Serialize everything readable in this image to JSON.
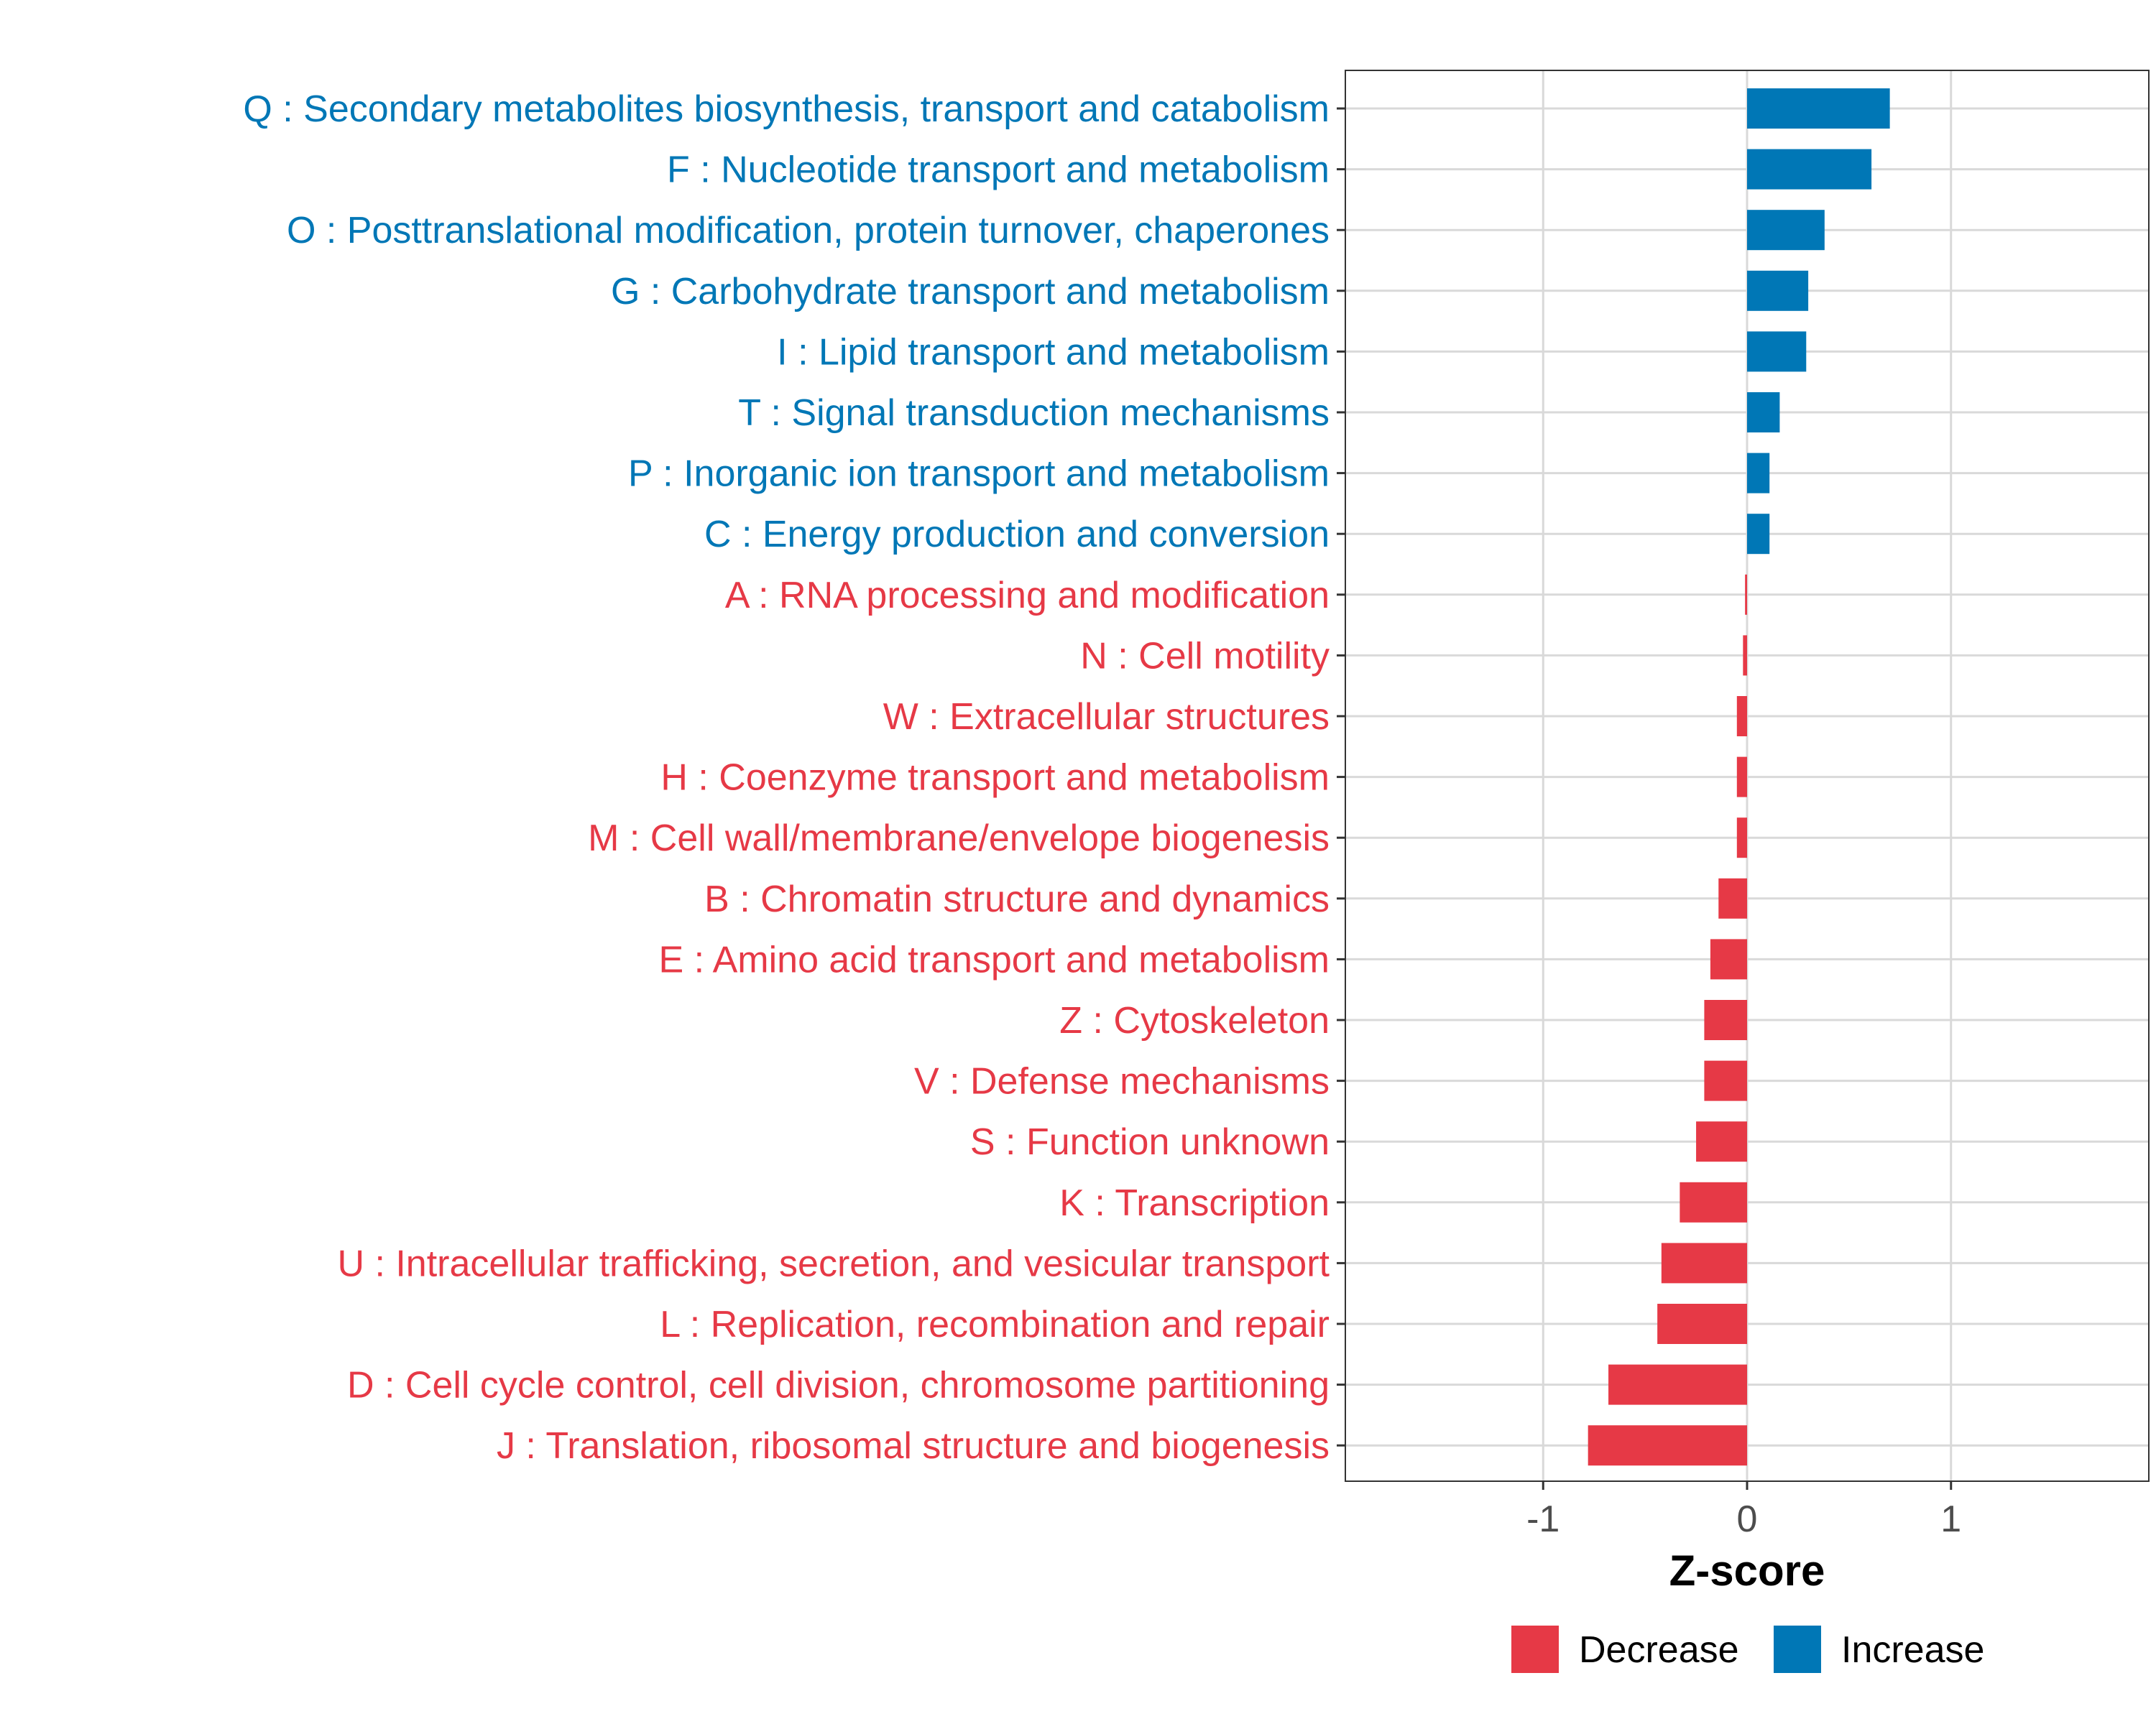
{
  "chart_data": {
    "type": "bar",
    "orientation": "horizontal",
    "categories": [
      "Q : Secondary metabolites biosynthesis, transport and catabolism",
      "F : Nucleotide transport and metabolism",
      "O : Posttranslational modification, protein turnover, chaperones",
      "G : Carbohydrate transport and metabolism",
      "I : Lipid transport and metabolism",
      "T : Signal transduction mechanisms",
      "P : Inorganic ion transport and metabolism",
      "C : Energy production and conversion",
      "A : RNA processing and modification",
      "N : Cell motility",
      "W : Extracellular structures",
      "H : Coenzyme transport and metabolism",
      "M : Cell wall/membrane/envelope biogenesis",
      "B : Chromatin structure and dynamics",
      "E : Amino acid transport and metabolism",
      "Z : Cytoskeleton",
      "V : Defense mechanisms",
      "S : Function unknown",
      "K : Transcription",
      "U : Intracellular trafficking, secretion, and vesicular transport",
      "L : Replication, recombination and repair",
      "D : Cell cycle control, cell division, chromosome partitioning",
      "J : Translation, ribosomal structure and biogenesis"
    ],
    "values": [
      0.7,
      0.61,
      0.38,
      0.3,
      0.29,
      0.16,
      0.11,
      0.11,
      -0.01,
      -0.02,
      -0.05,
      -0.05,
      -0.05,
      -0.14,
      -0.18,
      -0.21,
      -0.21,
      -0.25,
      -0.33,
      -0.42,
      -0.44,
      -0.68,
      -0.78
    ],
    "groups": [
      "Increase",
      "Increase",
      "Increase",
      "Increase",
      "Increase",
      "Increase",
      "Increase",
      "Increase",
      "Decrease",
      "Decrease",
      "Decrease",
      "Decrease",
      "Decrease",
      "Decrease",
      "Decrease",
      "Decrease",
      "Decrease",
      "Decrease",
      "Decrease",
      "Decrease",
      "Decrease",
      "Decrease",
      "Decrease"
    ],
    "xlabel": "Z-score",
    "ylabel": "",
    "xlim": [
      -1.97,
      1.97
    ],
    "xticks": [
      -1,
      0,
      1
    ],
    "xtick_labels": [
      "-1",
      "0",
      "1"
    ],
    "grid": true,
    "legend": {
      "position": "bottom",
      "entries": [
        {
          "label": "Decrease",
          "color": "#e63946"
        },
        {
          "label": "Increase",
          "color": "#0077b6"
        }
      ]
    }
  },
  "colors": {
    "decrease": "#e63946",
    "increase": "#0077b6",
    "grid": "#d9d9d9",
    "panel_border": "#333333"
  }
}
